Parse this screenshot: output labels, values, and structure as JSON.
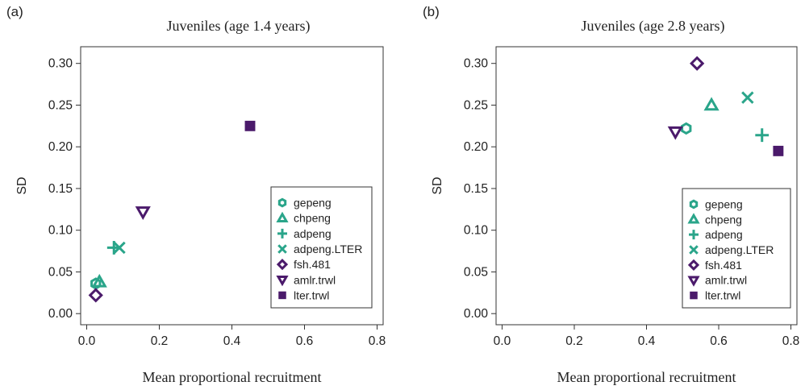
{
  "colors": {
    "green": "#2aa58a",
    "purple": "#4b1a6b",
    "axis": "#333333"
  },
  "chart_data": [
    {
      "type": "scatter",
      "panel_label": "(a)",
      "title": "Juveniles (age 1.4 years)",
      "xlabel": "Mean proportional recruitment",
      "ylabel": "SD",
      "xlim": [
        0,
        0.8
      ],
      "ylim": [
        0,
        0.3
      ],
      "xticks": [
        "0.0",
        "0.2",
        "0.4",
        "0.6",
        "0.8"
      ],
      "yticks": [
        "0.00",
        "0.05",
        "0.10",
        "0.15",
        "0.20",
        "0.25",
        "0.30"
      ],
      "legend_position": "bottom-right",
      "series": [
        {
          "name": "gepeng",
          "marker": "hexagon",
          "color": "green",
          "x": 0.025,
          "y": 0.036
        },
        {
          "name": "chpeng",
          "marker": "triangle-up",
          "color": "green",
          "x": 0.035,
          "y": 0.038
        },
        {
          "name": "adpeng",
          "marker": "plus",
          "color": "green",
          "x": 0.075,
          "y": 0.079
        },
        {
          "name": "adpeng.LTER",
          "marker": "x",
          "color": "green",
          "x": 0.09,
          "y": 0.079
        },
        {
          "name": "fsh.481",
          "marker": "diamond",
          "color": "purple",
          "x": 0.025,
          "y": 0.022
        },
        {
          "name": "amlr.trwl",
          "marker": "triangle-down",
          "color": "purple",
          "x": 0.155,
          "y": 0.122
        },
        {
          "name": "lter.trwl",
          "marker": "square",
          "color": "purple",
          "x": 0.45,
          "y": 0.225
        }
      ]
    },
    {
      "type": "scatter",
      "panel_label": "(b)",
      "title": "Juveniles (age 2.8 years)",
      "xlabel": "Mean proportional recruitment",
      "ylabel": "SD",
      "xlim": [
        0,
        0.8
      ],
      "ylim": [
        0,
        0.3
      ],
      "xticks": [
        "0.0",
        "0.2",
        "0.4",
        "0.6",
        "0.8"
      ],
      "yticks": [
        "0.00",
        "0.05",
        "0.10",
        "0.15",
        "0.20",
        "0.25",
        "0.30"
      ],
      "legend_position": "bottom-right",
      "series": [
        {
          "name": "gepeng",
          "marker": "hexagon",
          "color": "green",
          "x": 0.51,
          "y": 0.222
        },
        {
          "name": "chpeng",
          "marker": "triangle-up",
          "color": "green",
          "x": 0.58,
          "y": 0.25
        },
        {
          "name": "adpeng",
          "marker": "plus",
          "color": "green",
          "x": 0.72,
          "y": 0.214
        },
        {
          "name": "adpeng.LTER",
          "marker": "x",
          "color": "green",
          "x": 0.68,
          "y": 0.259
        },
        {
          "name": "fsh.481",
          "marker": "diamond",
          "color": "purple",
          "x": 0.54,
          "y": 0.3
        },
        {
          "name": "amlr.trwl",
          "marker": "triangle-down",
          "color": "purple",
          "x": 0.48,
          "y": 0.218
        },
        {
          "name": "lter.trwl",
          "marker": "square",
          "color": "purple",
          "x": 0.765,
          "y": 0.195
        }
      ]
    }
  ]
}
